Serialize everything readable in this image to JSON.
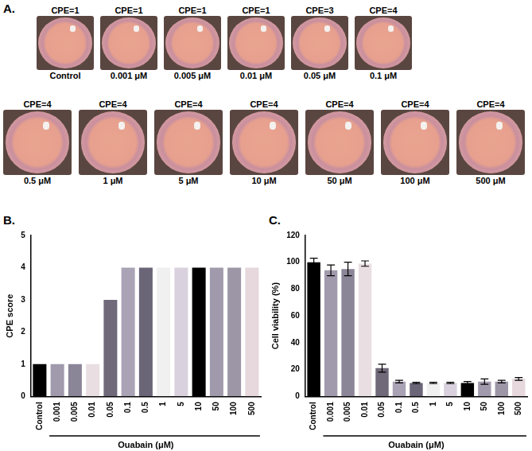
{
  "panel_labels": [
    "A.",
    "B.",
    "C."
  ],
  "wells": [
    {
      "score_label": "CPE=1",
      "label": "Control"
    },
    {
      "score_label": "CPE=1",
      "label": "0.001 μM"
    },
    {
      "score_label": "CPE=1",
      "label": "0.005 μM"
    },
    {
      "score_label": "CPE=1",
      "label": "0.01 μM"
    },
    {
      "score_label": "CPE=3",
      "label": "0.05 μM"
    },
    {
      "score_label": "CPE=4",
      "label": "0.1 μM"
    },
    {
      "score_label": "CPE=4",
      "label": "0.5 μM"
    },
    {
      "score_label": "CPE=4",
      "label": "1 μM"
    },
    {
      "score_label": "CPE=4",
      "label": "5 μM"
    },
    {
      "score_label": "CPE=4",
      "label": "10 μM"
    },
    {
      "score_label": "CPE=4",
      "label": "50 μM"
    },
    {
      "score_label": "CPE=4",
      "label": "100 μM"
    },
    {
      "score_label": "CPE=4",
      "label": "500 μM"
    }
  ],
  "chart_data": [
    {
      "type": "bar",
      "ylabel": "CPE score",
      "xlabel": "Ouabain (μM)",
      "categories": [
        "Control",
        "0.001",
        "0.005",
        "0.01",
        "0.05",
        "0.1",
        "0.5",
        "1",
        "5",
        "10",
        "50",
        "100",
        "500"
      ],
      "values": [
        1,
        1,
        1,
        1,
        3,
        4,
        4,
        4,
        4,
        4,
        4,
        4,
        4
      ],
      "colors": [
        "#000000",
        "#a19aac",
        "#8b8598",
        "#e9dfe2",
        "#6f6979",
        "#aaa3b5",
        "#6b6578",
        "#f0f0f0",
        "#d9d1dd",
        "#000000",
        "#a19aac",
        "#9d96a7",
        "#e6d8dc"
      ],
      "ylim": [
        0,
        5
      ],
      "yticks": [
        0,
        1,
        2,
        3,
        4,
        5
      ],
      "grid": false
    },
    {
      "type": "bar",
      "ylabel": "Cell viability (%)",
      "xlabel": "Ouabain (μM)",
      "categories": [
        "Control",
        "0.001",
        "0.005",
        "0.01",
        "0.05",
        "0.1",
        "0.5",
        "1",
        "5",
        "10",
        "50",
        "100",
        "500"
      ],
      "values": [
        100,
        94,
        95,
        99,
        21,
        11,
        10,
        10,
        10,
        10,
        11,
        11,
        13
      ],
      "errors": [
        3,
        4,
        5,
        2,
        3,
        1,
        0.5,
        0.5,
        0.5,
        1,
        2,
        1,
        1
      ],
      "colors": [
        "#000000",
        "#a19aac",
        "#8b8598",
        "#e9dfe2",
        "#6f6979",
        "#aaa3b5",
        "#6b6578",
        "#f0f0f0",
        "#d9d1dd",
        "#000000",
        "#a19aac",
        "#9d96a7",
        "#e6d8dc"
      ],
      "ylim": [
        0,
        120
      ],
      "yticks": [
        0,
        20,
        40,
        60,
        80,
        100,
        120
      ],
      "grid": false
    }
  ]
}
